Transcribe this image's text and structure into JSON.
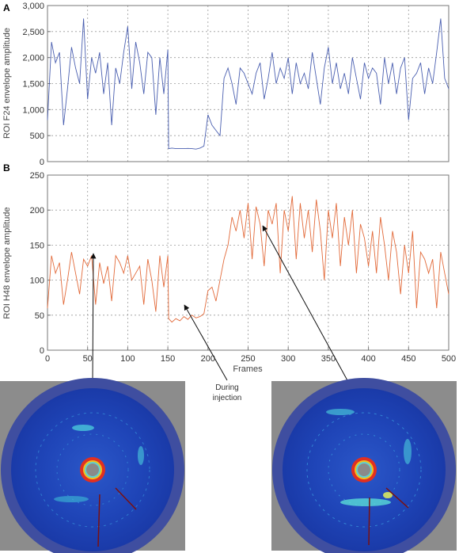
{
  "chart_data": [
    {
      "panel": "A",
      "type": "line",
      "ylabel": "ROI F24 envelope amplitude",
      "xlabel": "",
      "xlim": [
        0,
        500
      ],
      "ylim": [
        0,
        3000
      ],
      "yticks": [
        0,
        500,
        1000,
        1500,
        2000,
        2500,
        3000
      ],
      "ytick_labels": [
        "0",
        "500",
        "1,000",
        "1,500",
        "2,000",
        "2,500",
        "3,000"
      ],
      "xticks": [
        0,
        50,
        100,
        150,
        200,
        250,
        300,
        350,
        400,
        450,
        500
      ],
      "grid": true,
      "color": "#4a5fb0",
      "series": [
        {
          "x": [
            0,
            5,
            10,
            15,
            20,
            25,
            30,
            35,
            40,
            45,
            50,
            55,
            60,
            65,
            70,
            75,
            80,
            85,
            90,
            95,
            100,
            105,
            110,
            115,
            120,
            125,
            130,
            135,
            140,
            145,
            150,
            151,
            155,
            160,
            165,
            170,
            175,
            180,
            185,
            190,
            195,
            200,
            205,
            210,
            215,
            220,
            225,
            230,
            235,
            240,
            245,
            250,
            255,
            260,
            265,
            270,
            275,
            280,
            285,
            290,
            295,
            300,
            305,
            310,
            315,
            320,
            325,
            330,
            335,
            340,
            345,
            350,
            355,
            360,
            365,
            370,
            375,
            380,
            385,
            390,
            395,
            400,
            405,
            410,
            415,
            420,
            425,
            430,
            435,
            440,
            445,
            450,
            455,
            460,
            465,
            470,
            475,
            480,
            485,
            490,
            495,
            500
          ],
          "y": [
            800,
            2300,
            1900,
            2100,
            700,
            1400,
            2200,
            1800,
            1500,
            2750,
            1200,
            2000,
            1700,
            2100,
            1300,
            1900,
            700,
            1800,
            1500,
            2100,
            2600,
            1400,
            2300,
            1900,
            1300,
            2100,
            2000,
            900,
            2000,
            1300,
            2150,
            250,
            260,
            250,
            250,
            250,
            255,
            250,
            240,
            260,
            300,
            900,
            700,
            600,
            500,
            1600,
            1800,
            1500,
            1100,
            1800,
            1700,
            1500,
            1300,
            1700,
            1900,
            1200,
            1600,
            2100,
            1500,
            1800,
            1600,
            2000,
            1300,
            1900,
            1500,
            1700,
            1400,
            2100,
            1600,
            1100,
            1800,
            2200,
            1500,
            1900,
            1400,
            1700,
            1300,
            2000,
            1600,
            1200,
            1900,
            1600,
            1800,
            1700,
            1100,
            2000,
            1500,
            1900,
            1300,
            1800,
            2000,
            800,
            1600,
            1700,
            1900,
            1300,
            1800,
            1500,
            2100,
            2750,
            1600,
            1400
          ]
        }
      ]
    },
    {
      "panel": "B",
      "type": "line",
      "ylabel": "ROI H48 envelope amplitude",
      "xlabel": "Frames",
      "xlim": [
        0,
        500
      ],
      "ylim": [
        0,
        250
      ],
      "yticks": [
        0,
        50,
        100,
        150,
        200,
        250
      ],
      "ytick_labels": [
        "0",
        "50",
        "100",
        "150",
        "200",
        "250"
      ],
      "xticks": [
        0,
        50,
        100,
        150,
        200,
        250,
        300,
        350,
        400,
        450,
        500
      ],
      "grid": true,
      "color": "#e26a3a",
      "series": [
        {
          "x": [
            0,
            5,
            10,
            15,
            20,
            25,
            30,
            35,
            40,
            45,
            50,
            55,
            60,
            65,
            70,
            75,
            80,
            85,
            90,
            95,
            100,
            105,
            110,
            115,
            120,
            125,
            130,
            135,
            140,
            145,
            150,
            151,
            155,
            160,
            165,
            170,
            175,
            180,
            185,
            190,
            195,
            200,
            205,
            210,
            215,
            220,
            225,
            230,
            235,
            240,
            245,
            250,
            255,
            260,
            265,
            270,
            275,
            280,
            285,
            290,
            295,
            300,
            305,
            310,
            315,
            320,
            325,
            330,
            335,
            340,
            345,
            350,
            355,
            360,
            365,
            370,
            375,
            380,
            385,
            390,
            395,
            400,
            405,
            410,
            415,
            420,
            425,
            430,
            435,
            440,
            445,
            450,
            455,
            460,
            465,
            470,
            475,
            480,
            485,
            490,
            495,
            500
          ],
          "y": [
            60,
            135,
            110,
            125,
            65,
            100,
            140,
            110,
            80,
            130,
            120,
            135,
            65,
            125,
            95,
            120,
            70,
            135,
            125,
            110,
            135,
            100,
            110,
            120,
            65,
            130,
            100,
            55,
            135,
            90,
            135,
            45,
            40,
            45,
            42,
            48,
            44,
            50,
            46,
            48,
            52,
            85,
            90,
            70,
            100,
            130,
            150,
            190,
            170,
            200,
            160,
            210,
            130,
            205,
            180,
            120,
            200,
            180,
            210,
            110,
            200,
            170,
            220,
            130,
            210,
            160,
            200,
            140,
            215,
            170,
            100,
            200,
            160,
            210,
            120,
            190,
            150,
            200,
            110,
            180,
            160,
            120,
            170,
            110,
            190,
            150,
            100,
            170,
            140,
            80,
            150,
            110,
            170,
            60,
            140,
            130,
            110,
            130,
            60,
            140,
            110,
            80
          ]
        }
      ]
    }
  ],
  "panels": {
    "a_label": "A",
    "b_label": "B"
  },
  "annotation": {
    "line1": "During",
    "line2": "injection"
  },
  "images": {
    "left": "intravascular ultrasound frame (before injection)",
    "right": "intravascular ultrasound frame (after injection)"
  }
}
